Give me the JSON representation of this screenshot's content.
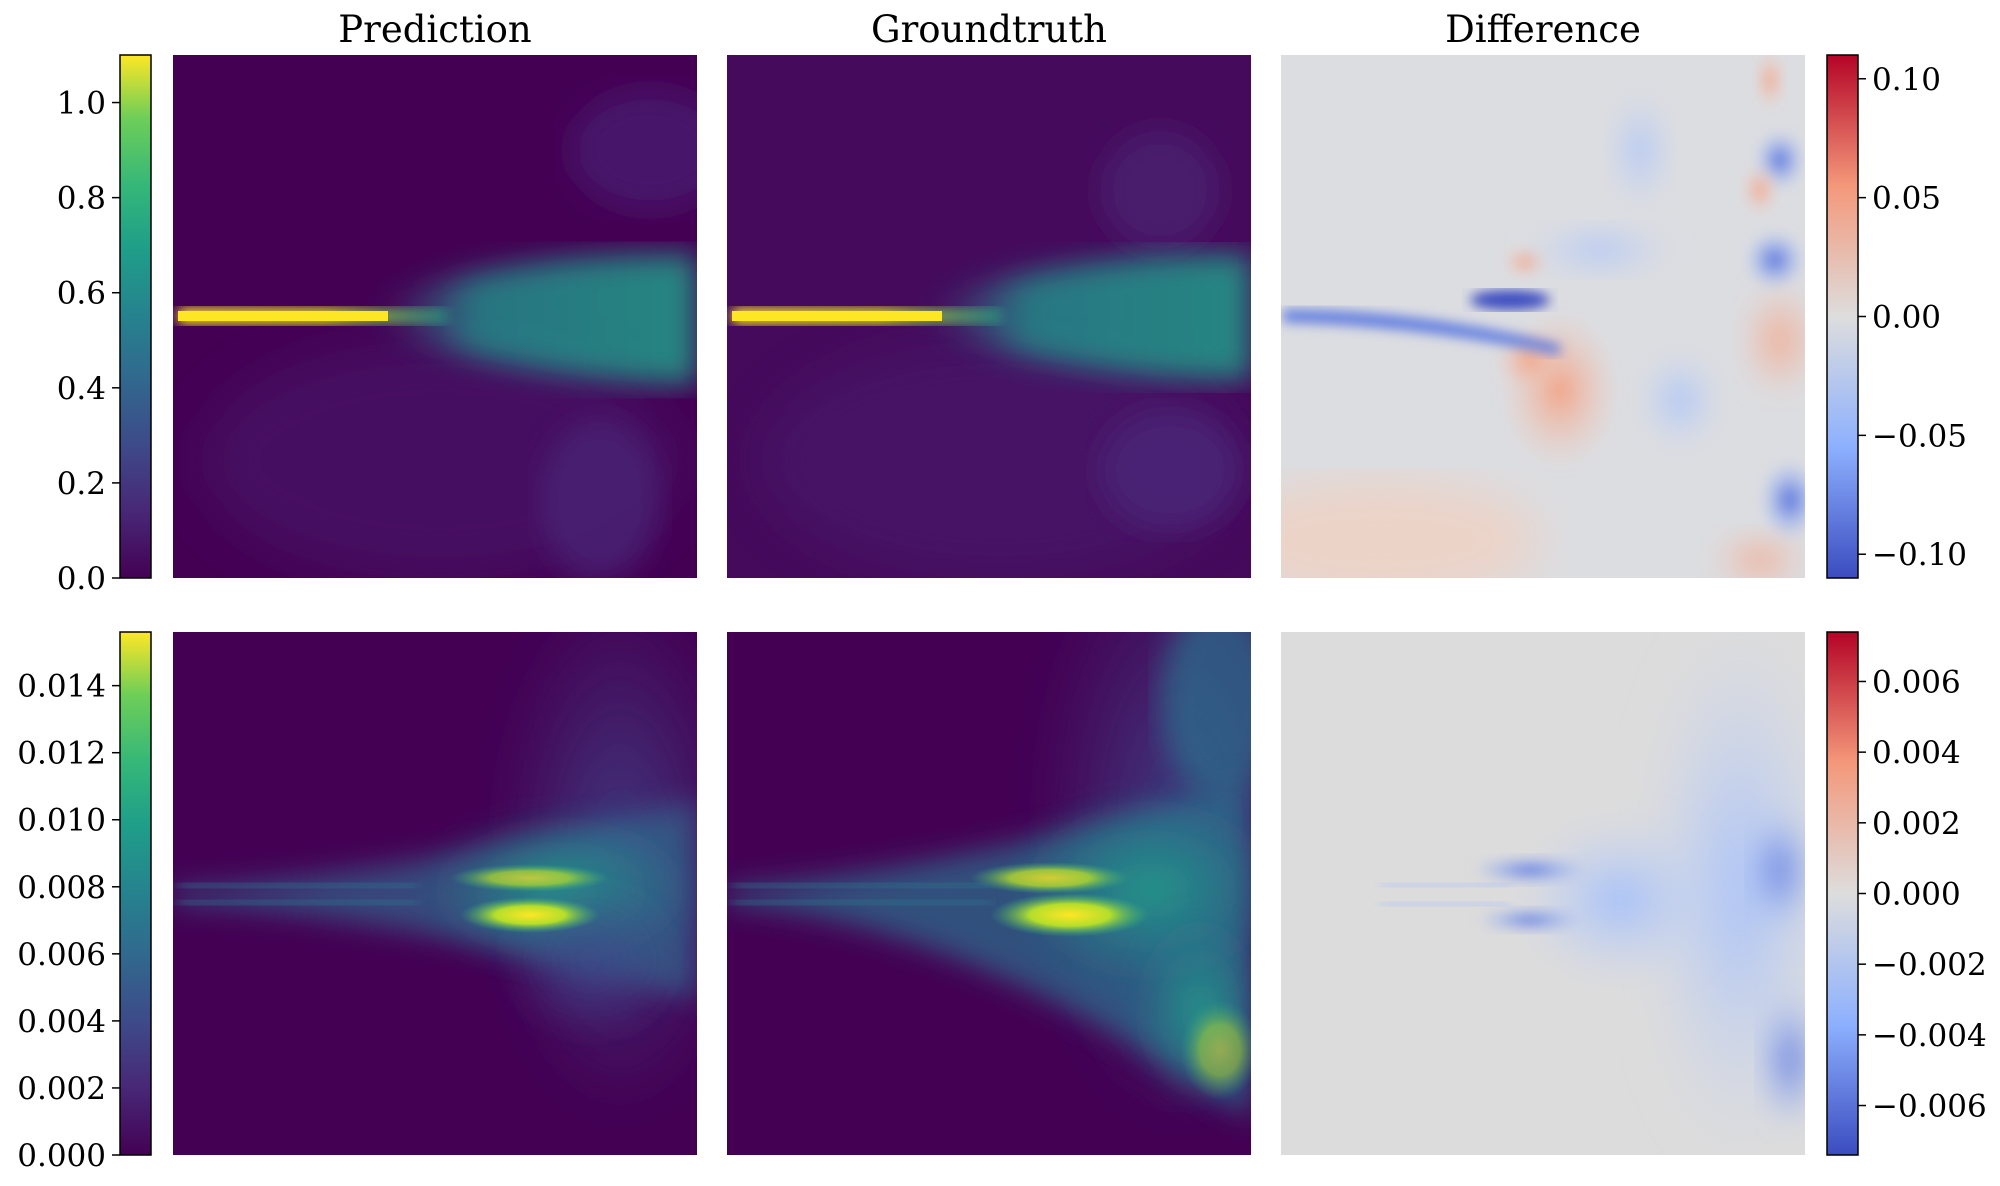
{
  "chart_data": [
    {
      "type": "heatmap",
      "row": 1,
      "panels": [
        "Prediction",
        "Groundtruth",
        "Difference"
      ],
      "colorbars": [
        {
          "side": "left",
          "colormap": "viridis",
          "range": [
            0.0,
            1.1
          ],
          "ticks": [
            0.0,
            0.2,
            0.4,
            0.6,
            0.8,
            1.0
          ],
          "tick_labels": [
            "0.0",
            "0.2",
            "0.4",
            "0.6",
            "0.8",
            "1.0"
          ]
        },
        {
          "side": "right",
          "colormap": "coolwarm",
          "range": [
            -0.11,
            0.11
          ],
          "ticks": [
            0.1,
            0.05,
            0.0,
            -0.05,
            -0.1
          ],
          "tick_labels": [
            "0.10",
            "0.05",
            "0.00",
            "−0.05",
            "−0.10"
          ]
        }
      ]
    },
    {
      "type": "heatmap",
      "row": 2,
      "panels": [
        "Prediction",
        "Groundtruth",
        "Difference"
      ],
      "colorbars": [
        {
          "side": "left",
          "colormap": "viridis",
          "range": [
            0.0,
            0.0156
          ],
          "ticks": [
            0.0,
            0.002,
            0.004,
            0.006,
            0.008,
            0.01,
            0.012,
            0.014
          ],
          "tick_labels": [
            "0.000",
            "0.002",
            "0.004",
            "0.006",
            "0.008",
            "0.010",
            "0.012",
            "0.014"
          ]
        },
        {
          "side": "right",
          "colormap": "coolwarm",
          "range": [
            -0.0074,
            0.0074
          ],
          "ticks": [
            0.006,
            0.004,
            0.002,
            0.0,
            -0.002,
            -0.004,
            -0.006
          ],
          "tick_labels": [
            "0.006",
            "0.004",
            "0.002",
            "0.000",
            "−0.002",
            "−0.004",
            "−0.006"
          ]
        }
      ]
    }
  ],
  "titles": {
    "col1": "Prediction",
    "col2": "Groundtruth",
    "col3": "Difference"
  },
  "colors": {
    "viridis_low": "#440154",
    "viridis_mid": "#21918c",
    "viridis_high": "#fde725",
    "coolwarm_low": "#3b4cc0",
    "coolwarm_mid": "#dddddd",
    "coolwarm_high": "#b40426"
  }
}
